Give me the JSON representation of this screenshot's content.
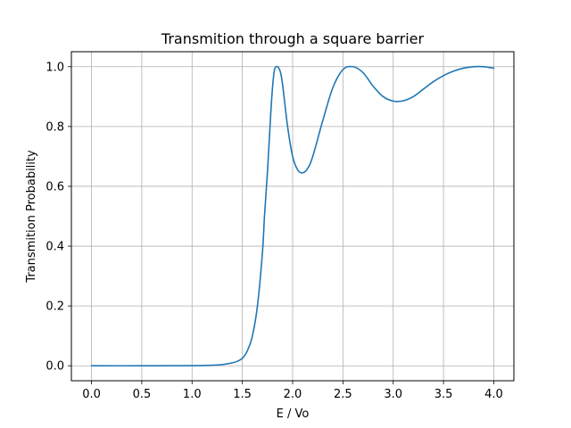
{
  "chart_data": {
    "type": "line",
    "title": "Transmition through a square barrier",
    "xlabel": "E / Vo",
    "ylabel": "Transmition Probability",
    "xlim": [
      -0.2,
      4.2
    ],
    "ylim": [
      -0.05,
      1.05
    ],
    "xticks": [
      0.0,
      0.5,
      1.0,
      1.5,
      2.0,
      2.5,
      3.0,
      3.5,
      4.0
    ],
    "xtick_labels": [
      "0.0",
      "0.5",
      "1.0",
      "1.5",
      "2.0",
      "2.5",
      "3.0",
      "3.5",
      "4.0"
    ],
    "yticks": [
      0.0,
      0.2,
      0.4,
      0.6,
      0.8,
      1.0
    ],
    "ytick_labels": [
      "0.0",
      "0.2",
      "0.4",
      "0.6",
      "0.8",
      "1.0"
    ],
    "grid": true,
    "series": [
      {
        "color": "#1f77b4",
        "x": [
          0.0,
          0.5,
          1.0,
          1.2,
          1.3,
          1.4,
          1.45,
          1.5,
          1.55,
          1.6,
          1.65,
          1.7,
          1.72,
          1.75,
          1.78,
          1.8,
          1.82,
          1.85,
          1.88,
          1.9,
          1.95,
          2.0,
          2.05,
          2.1,
          2.15,
          2.2,
          2.3,
          2.4,
          2.5,
          2.6,
          2.7,
          2.8,
          2.9,
          3.0,
          3.1,
          3.2,
          3.3,
          3.4,
          3.5,
          3.6,
          3.7,
          3.8,
          3.9,
          4.0
        ],
        "y": [
          0.0,
          0.0,
          0.0005,
          0.002,
          0.004,
          0.01,
          0.015,
          0.025,
          0.05,
          0.1,
          0.2,
          0.38,
          0.5,
          0.65,
          0.83,
          0.93,
          0.99,
          1.0,
          0.98,
          0.94,
          0.8,
          0.7,
          0.655,
          0.645,
          0.66,
          0.7,
          0.82,
          0.93,
          0.99,
          1.0,
          0.98,
          0.935,
          0.9,
          0.885,
          0.886,
          0.9,
          0.925,
          0.95,
          0.97,
          0.985,
          0.995,
          1.0,
          1.0,
          0.995
        ]
      }
    ]
  }
}
